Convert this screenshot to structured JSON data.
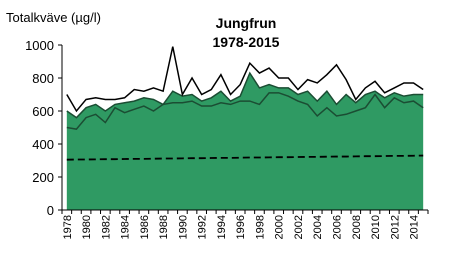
{
  "chart_data": {
    "type": "line",
    "title": "Jungfrun",
    "subtitle": "1978-2015",
    "y_label": "Totalkväve  (µg/l)",
    "categories": [
      "1978",
      null,
      "1980",
      null,
      "1982",
      null,
      "1984",
      null,
      "1986",
      null,
      "1988",
      null,
      "1990",
      null,
      "1992",
      null,
      "1994",
      null,
      "1996",
      null,
      "1998",
      null,
      "2000",
      null,
      "2002",
      null,
      "2004",
      null,
      "2006",
      null,
      "2008",
      null,
      "2010",
      null,
      "2012",
      null,
      "2014",
      null
    ],
    "series": [
      {
        "style": "area",
        "color": "#2f9a63",
        "edge_color": "#1b4d33",
        "values": [
          600,
          560,
          620,
          640,
          600,
          640,
          650,
          660,
          680,
          670,
          640,
          720,
          690,
          700,
          660,
          680,
          720,
          660,
          690,
          830,
          740,
          760,
          740,
          740,
          700,
          720,
          660,
          720,
          640,
          700,
          650,
          700,
          720,
          680,
          710,
          690,
          700,
          700
        ]
      },
      {
        "style": "line",
        "color": "#1b4d33",
        "values": [
          500,
          490,
          560,
          580,
          530,
          620,
          590,
          610,
          630,
          600,
          640,
          650,
          650,
          660,
          630,
          630,
          650,
          640,
          660,
          660,
          640,
          710,
          710,
          690,
          660,
          640,
          570,
          620,
          570,
          580,
          600,
          620,
          700,
          620,
          680,
          650,
          660,
          620
        ]
      },
      {
        "style": "line",
        "color": "#000000",
        "values": [
          700,
          600,
          670,
          680,
          670,
          670,
          680,
          730,
          720,
          740,
          720,
          990,
          700,
          800,
          700,
          730,
          820,
          700,
          760,
          890,
          830,
          860,
          800,
          800,
          730,
          790,
          770,
          820,
          880,
          790,
          670,
          740,
          780,
          710,
          740,
          770,
          770,
          730
        ]
      },
      {
        "style": "dashed",
        "color": "#000000",
        "values": [
          305,
          306,
          306,
          307,
          308,
          308,
          309,
          310,
          310,
          311,
          312,
          312,
          313,
          314,
          314,
          315,
          316,
          316,
          317,
          318,
          318,
          319,
          320,
          320,
          321,
          322,
          322,
          323,
          324,
          324,
          325,
          326,
          326,
          327,
          328,
          328,
          329,
          330
        ]
      }
    ],
    "ylim": [
      0,
      1000
    ],
    "yticks": [
      0,
      200,
      400,
      600,
      800,
      1000
    ],
    "grid": false
  }
}
